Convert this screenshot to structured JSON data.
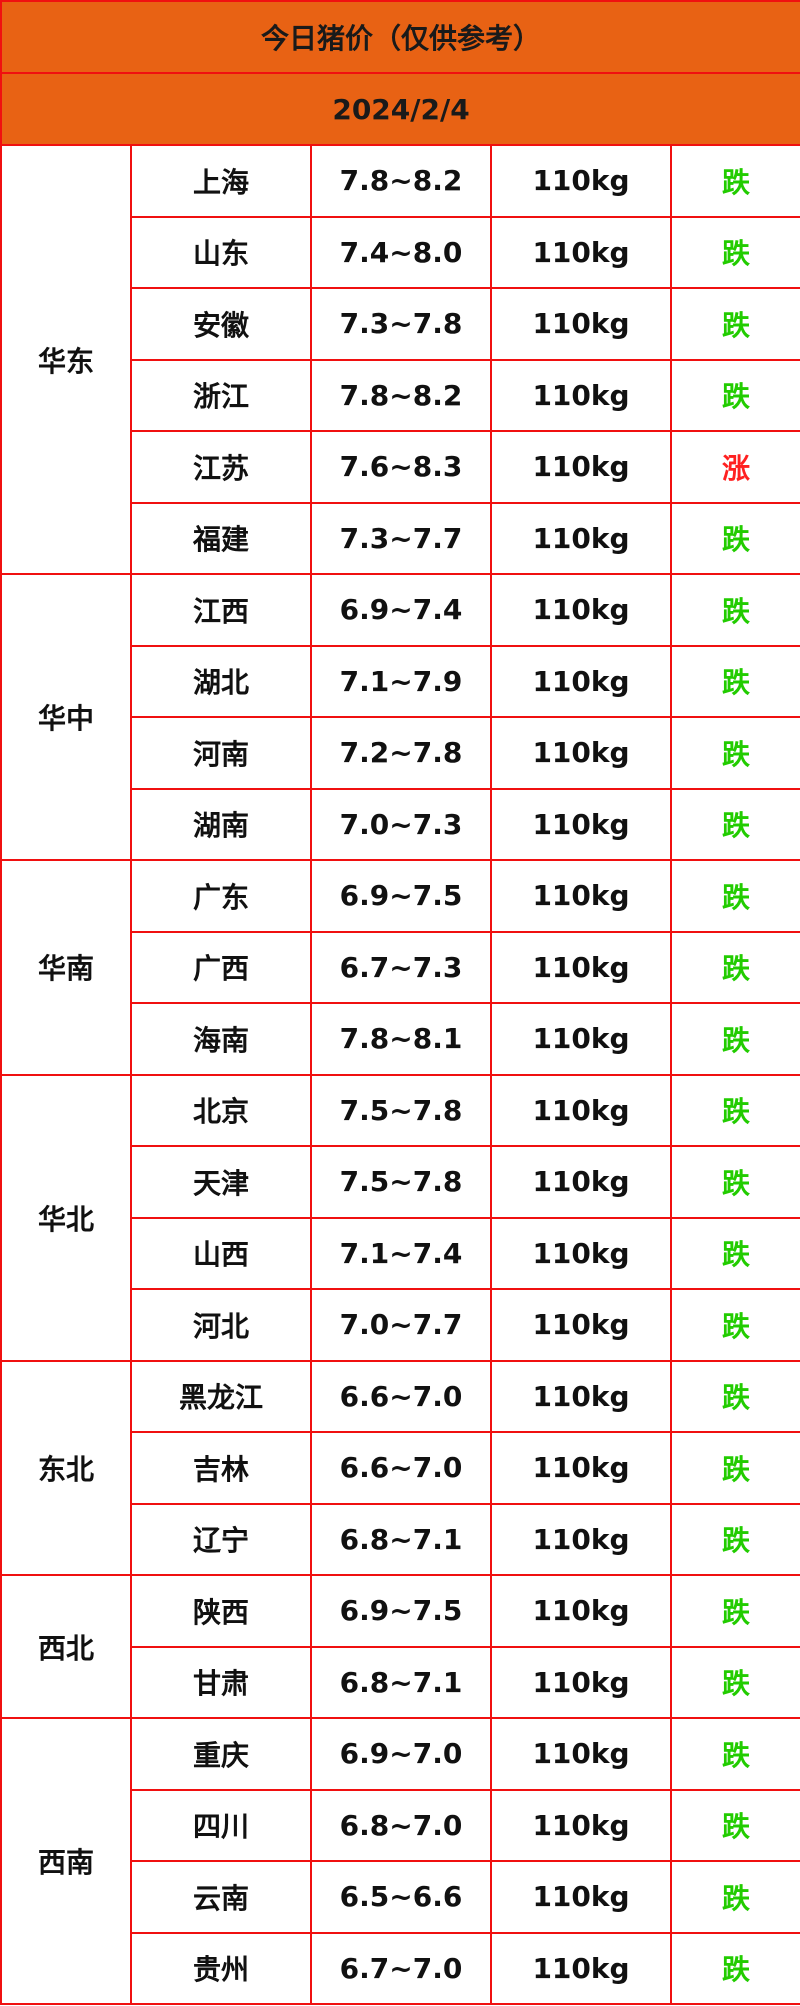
{
  "title": "今日猪价（仅供参考）",
  "date": "2024/2/4",
  "colors": {
    "header_bg": "#e86214",
    "border": "#f01010",
    "down": "#22cc00",
    "up": "#ff2020"
  },
  "groups": [
    {
      "region": "华东",
      "rows": [
        {
          "province": "上海",
          "price": "7.8~8.2",
          "weight": "110kg",
          "trend": "跌"
        },
        {
          "province": "山东",
          "price": "7.4~8.0",
          "weight": "110kg",
          "trend": "跌"
        },
        {
          "province": "安徽",
          "price": "7.3~7.8",
          "weight": "110kg",
          "trend": "跌"
        },
        {
          "province": "浙江",
          "price": "7.8~8.2",
          "weight": "110kg",
          "trend": "跌"
        },
        {
          "province": "江苏",
          "price": "7.6~8.3",
          "weight": "110kg",
          "trend": "涨"
        },
        {
          "province": "福建",
          "price": "7.3~7.7",
          "weight": "110kg",
          "trend": "跌"
        }
      ]
    },
    {
      "region": "华中",
      "rows": [
        {
          "province": "江西",
          "price": "6.9~7.4",
          "weight": "110kg",
          "trend": "跌"
        },
        {
          "province": "湖北",
          "price": "7.1~7.9",
          "weight": "110kg",
          "trend": "跌"
        },
        {
          "province": "河南",
          "price": "7.2~7.8",
          "weight": "110kg",
          "trend": "跌"
        },
        {
          "province": "湖南",
          "price": "7.0~7.3",
          "weight": "110kg",
          "trend": "跌"
        }
      ]
    },
    {
      "region": "华南",
      "rows": [
        {
          "province": "广东",
          "price": "6.9~7.5",
          "weight": "110kg",
          "trend": "跌"
        },
        {
          "province": "广西",
          "price": "6.7~7.3",
          "weight": "110kg",
          "trend": "跌"
        },
        {
          "province": "海南",
          "price": "7.8~8.1",
          "weight": "110kg",
          "trend": "跌"
        }
      ]
    },
    {
      "region": "华北",
      "rows": [
        {
          "province": "北京",
          "price": "7.5~7.8",
          "weight": "110kg",
          "trend": "跌"
        },
        {
          "province": "天津",
          "price": "7.5~7.8",
          "weight": "110kg",
          "trend": "跌"
        },
        {
          "province": "山西",
          "price": "7.1~7.4",
          "weight": "110kg",
          "trend": "跌"
        },
        {
          "province": "河北",
          "price": "7.0~7.7",
          "weight": "110kg",
          "trend": "跌"
        }
      ]
    },
    {
      "region": "东北",
      "rows": [
        {
          "province": "黑龙江",
          "price": "6.6~7.0",
          "weight": "110kg",
          "trend": "跌"
        },
        {
          "province": "吉林",
          "price": "6.6~7.0",
          "weight": "110kg",
          "trend": "跌"
        },
        {
          "province": "辽宁",
          "price": "6.8~7.1",
          "weight": "110kg",
          "trend": "跌"
        }
      ]
    },
    {
      "region": "西北",
      "rows": [
        {
          "province": "陕西",
          "price": "6.9~7.5",
          "weight": "110kg",
          "trend": "跌"
        },
        {
          "province": "甘肃",
          "price": "6.8~7.1",
          "weight": "110kg",
          "trend": "跌"
        }
      ]
    },
    {
      "region": "西南",
      "rows": [
        {
          "province": "重庆",
          "price": "6.9~7.0",
          "weight": "110kg",
          "trend": "跌"
        },
        {
          "province": "四川",
          "price": "6.8~7.0",
          "weight": "110kg",
          "trend": "跌"
        },
        {
          "province": "云南",
          "price": "6.5~6.6",
          "weight": "110kg",
          "trend": "跌"
        },
        {
          "province": "贵州",
          "price": "6.7~7.0",
          "weight": "110kg",
          "trend": "跌"
        }
      ]
    }
  ]
}
